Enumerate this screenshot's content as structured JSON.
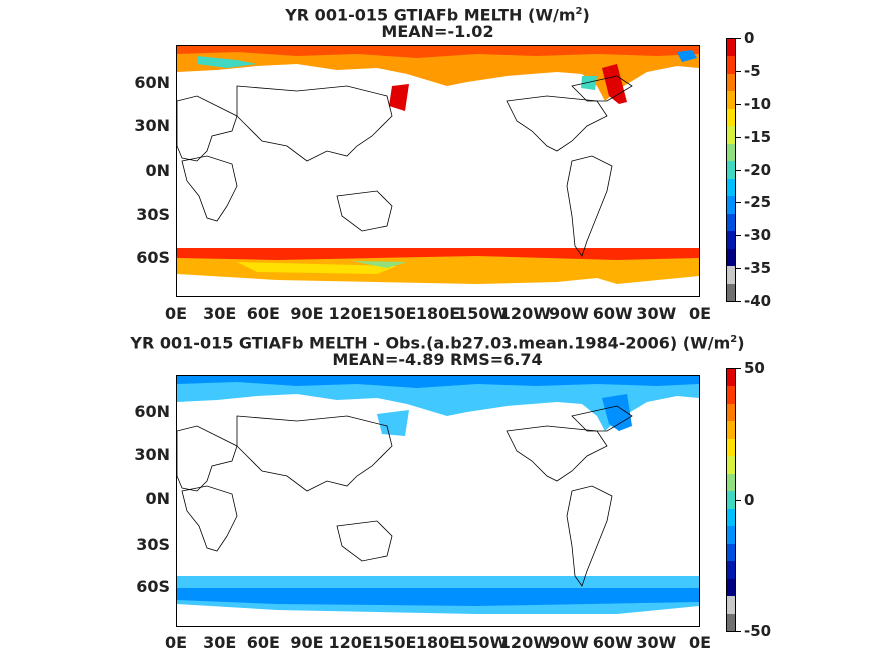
{
  "panels": [
    {
      "title_line1": "YR 001-015 GTIAFb  MELTH (W/m",
      "title_sup": "2",
      "title_close": ")",
      "title_line2": "MEAN=-1.02",
      "colorbar_ticks": [
        "0",
        "-5",
        "-10",
        "-15",
        "-20",
        "-25",
        "-30",
        "-35",
        "-40"
      ],
      "colorbar_colors": [
        "#e00000",
        "#ff3a00",
        "#ff7a00",
        "#ffb000",
        "#ffe000",
        "#d8f040",
        "#90e080",
        "#40d8c0",
        "#00c0ff",
        "#0090ff",
        "#0050e0",
        "#0018b0",
        "#000080",
        "#c8c8c8",
        "#707070"
      ],
      "lat_labels": [
        "60N",
        "30N",
        "0N",
        "30S",
        "60S"
      ],
      "lon_labels": [
        "0E",
        "30E",
        "60E",
        "90E",
        "120E",
        "150E",
        "180E",
        "150W",
        "120W",
        "90W",
        "60W",
        "30W",
        "0E"
      ]
    },
    {
      "title_line1": "YR 001-015 GTIAFb MELTH - Obs.(a.b27.03.mean.1984-2006) (W/m",
      "title_sup": "2",
      "title_close": ")",
      "title_line2": "MEAN=-4.89 RMS=6.74",
      "colorbar_ticks": [
        "50",
        "0",
        "-50"
      ],
      "colorbar_colors": [
        "#e00000",
        "#ff3a00",
        "#ff7a00",
        "#ffb000",
        "#ffe000",
        "#d8f040",
        "#90e080",
        "#40d8c0",
        "#00c0ff",
        "#0090ff",
        "#0050e0",
        "#0018b0",
        "#000080",
        "#c8c8c8",
        "#707070"
      ],
      "lat_labels": [
        "60N",
        "30N",
        "0N",
        "30S",
        "60S"
      ],
      "lon_labels": [
        "0E",
        "30E",
        "60E",
        "90E",
        "120E",
        "150E",
        "180E",
        "150W",
        "120W",
        "90W",
        "60W",
        "30W",
        "0E"
      ]
    }
  ]
}
